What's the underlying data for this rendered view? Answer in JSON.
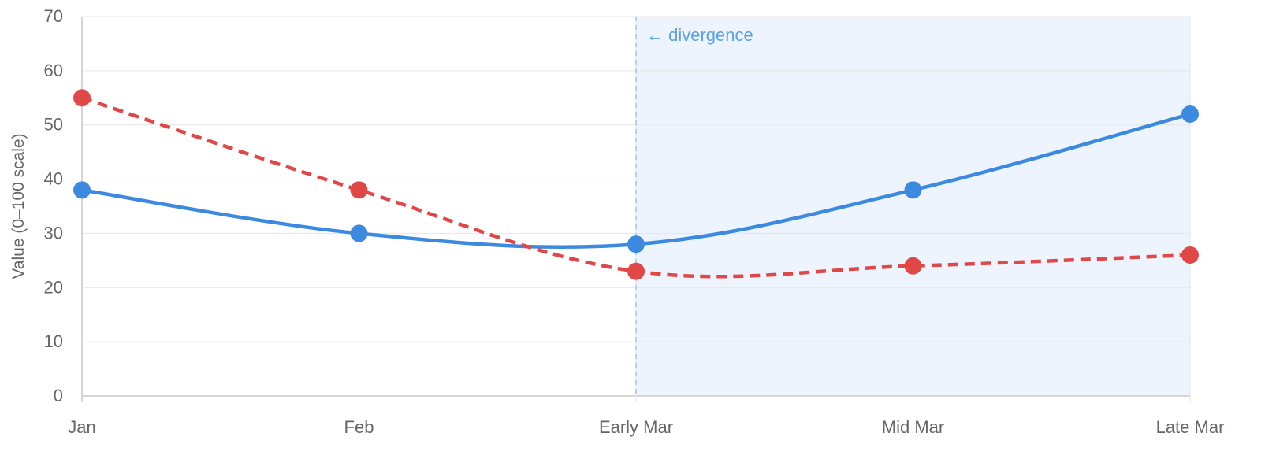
{
  "chart_data": {
    "type": "line",
    "categories": [
      "Jan",
      "Feb",
      "Early Mar",
      "Mid Mar",
      "Late Mar"
    ],
    "series": [
      {
        "values": [
          38,
          30,
          28,
          38,
          52
        ],
        "color": "#3b8ae0",
        "style": "solid"
      },
      {
        "values": [
          55,
          38,
          23,
          24,
          26
        ],
        "color": "#e04848",
        "style": "dashed"
      }
    ],
    "title": "",
    "xlabel": "",
    "ylabel": "Value (0–100 scale)",
    "ylim": [
      0,
      70
    ],
    "yticks": [
      0,
      10,
      20,
      30,
      40,
      50,
      60,
      70
    ],
    "grid": true,
    "legend": "none",
    "annotation": {
      "text": "← divergence",
      "at_category": "Early Mar",
      "shaded_from": "Early Mar",
      "shaded_to": "Late Mar",
      "color": "#5aa0e6",
      "shade_color": "#eef4fd"
    }
  }
}
